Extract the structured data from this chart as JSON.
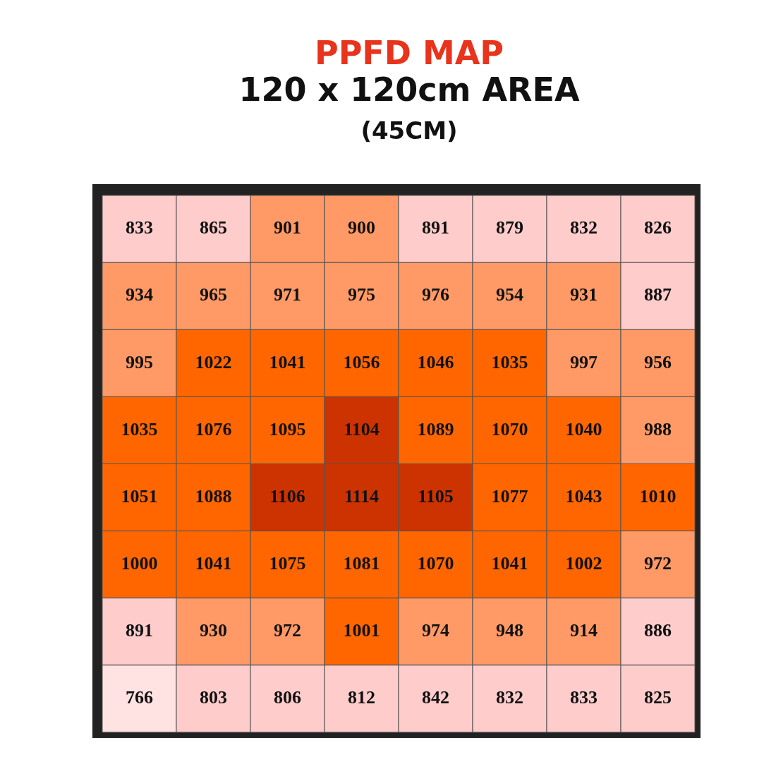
{
  "chart_data": {
    "type": "heatmap",
    "title": "PPFD MAP",
    "subtitle": "120 x 120cm AREA",
    "annotations": [
      "(45CM)"
    ],
    "categories": [
      null,
      null,
      null,
      null,
      null,
      null,
      null,
      null
    ],
    "y_categories": [
      null,
      null,
      null,
      null,
      null,
      null,
      null,
      null
    ],
    "cells": [
      [
        833,
        865,
        901,
        900,
        891,
        879,
        832,
        826
      ],
      [
        934,
        965,
        971,
        975,
        976,
        954,
        931,
        887
      ],
      [
        995,
        1022,
        1041,
        1056,
        1046,
        1035,
        997,
        956
      ],
      [
        1035,
        1076,
        1095,
        1104,
        1089,
        1070,
        1040,
        988
      ],
      [
        1051,
        1088,
        1106,
        1114,
        1105,
        1077,
        1043,
        1010
      ],
      [
        1000,
        1041,
        1075,
        1081,
        1070,
        1041,
        1002,
        972
      ],
      [
        891,
        930,
        972,
        1001,
        974,
        948,
        914,
        886
      ],
      [
        766,
        803,
        806,
        812,
        842,
        832,
        833,
        825
      ]
    ],
    "colors": [
      [
        "#ffcccc",
        "#ffcccc",
        "#ff9966",
        "#ff9966",
        "#ffcccc",
        "#ffcccc",
        "#ffcccc",
        "#ffcccc"
      ],
      [
        "#ff9966",
        "#ff9966",
        "#ff9966",
        "#ff9966",
        "#ff9966",
        "#ff9966",
        "#ff9966",
        "#ffcccc"
      ],
      [
        "#ff9966",
        "#ff6600",
        "#ff6600",
        "#ff6600",
        "#ff6600",
        "#ff6600",
        "#ff9966",
        "#ff9966"
      ],
      [
        "#ff6600",
        "#ff6600",
        "#ff6600",
        "#cc3300",
        "#ff6600",
        "#ff6600",
        "#ff6600",
        "#ff9966"
      ],
      [
        "#ff6600",
        "#ff6600",
        "#cc3300",
        "#cc3300",
        "#cc3300",
        "#ff6600",
        "#ff6600",
        "#ff6600"
      ],
      [
        "#ff6600",
        "#ff6600",
        "#ff6600",
        "#ff6600",
        "#ff6600",
        "#ff6600",
        "#ff6600",
        "#ff9966"
      ],
      [
        "#ffcccc",
        "#ff9966",
        "#ff9966",
        "#ff6600",
        "#ff9966",
        "#ff9966",
        "#ff9966",
        "#ffcccc"
      ],
      [
        "#ffe2e2",
        "#ffcccc",
        "#ffcccc",
        "#ffcccc",
        "#ffcccc",
        "#ffcccc",
        "#ffcccc",
        "#ffcccc"
      ]
    ],
    "data_labels": true,
    "legend": false
  }
}
